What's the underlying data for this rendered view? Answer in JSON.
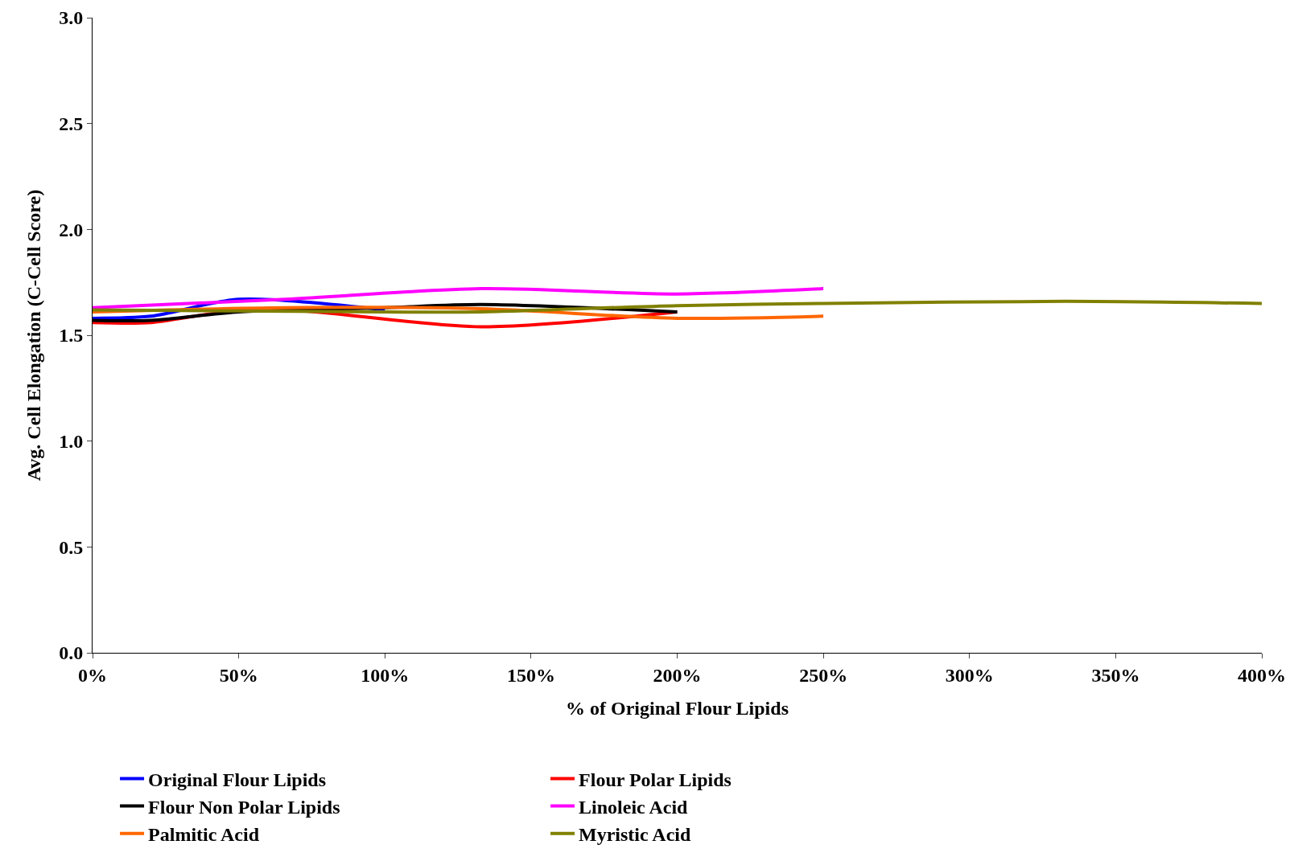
{
  "chart_data": {
    "type": "line",
    "xlabel": "% of Original Flour Lipids",
    "ylabel": "Avg. Cell Elongation (C-Cell Score)",
    "xlim": [
      0,
      400
    ],
    "xticks": [
      {
        "value": 0,
        "label": "0%"
      },
      {
        "value": 50,
        "label": "50%"
      },
      {
        "value": 100,
        "label": "100%"
      },
      {
        "value": 150,
        "label": "150%"
      },
      {
        "value": 200,
        "label": "200%"
      },
      {
        "value": 250,
        "label": "250%"
      },
      {
        "value": 300,
        "label": "300%"
      },
      {
        "value": 350,
        "label": "350%"
      },
      {
        "value": 400,
        "label": "400%"
      }
    ],
    "ylim": [
      0,
      3
    ],
    "yticks": [
      {
        "value": 0,
        "label": "0.0"
      },
      {
        "value": 0.5,
        "label": "0.5"
      },
      {
        "value": 1,
        "label": "1.0"
      },
      {
        "value": 1.5,
        "label": "1.5"
      },
      {
        "value": 2,
        "label": "2.0"
      },
      {
        "value": 2.5,
        "label": "2.5"
      },
      {
        "value": 3,
        "label": "3.0"
      }
    ],
    "grid": false,
    "legend": "bottom",
    "marker": "none",
    "line_style": "solid",
    "series": [
      {
        "name": "Original Flour Lipids",
        "color": "#0000ff",
        "x": [
          0,
          20,
          50,
          100
        ],
        "values": [
          1.58,
          1.59,
          1.67,
          1.62
        ]
      },
      {
        "name": "Flour Polar Lipids",
        "color": "#ff0000",
        "x": [
          0,
          20,
          40,
          66,
          133,
          200
        ],
        "values": [
          1.56,
          1.56,
          1.6,
          1.62,
          1.54,
          1.61
        ]
      },
      {
        "name": "Flour Non Polar Lipids",
        "color": "#000000",
        "x": [
          0,
          20,
          50,
          100,
          133,
          200
        ],
        "values": [
          1.57,
          1.57,
          1.61,
          1.63,
          1.645,
          1.61
        ]
      },
      {
        "name": "Linoleic Acid",
        "color": "#ff00ff",
        "x": [
          0,
          66,
          133,
          200,
          250
        ],
        "values": [
          1.63,
          1.67,
          1.72,
          1.695,
          1.72
        ]
      },
      {
        "name": "Palmitic Acid",
        "color": "#ff6600",
        "x": [
          0,
          66,
          133,
          200,
          250
        ],
        "values": [
          1.61,
          1.63,
          1.625,
          1.58,
          1.59
        ]
      },
      {
        "name": "Myristic Acid",
        "color": "#808000",
        "x": [
          0,
          100,
          133,
          200,
          250,
          333,
          400
        ],
        "values": [
          1.62,
          1.61,
          1.61,
          1.64,
          1.65,
          1.66,
          1.65
        ]
      }
    ]
  }
}
